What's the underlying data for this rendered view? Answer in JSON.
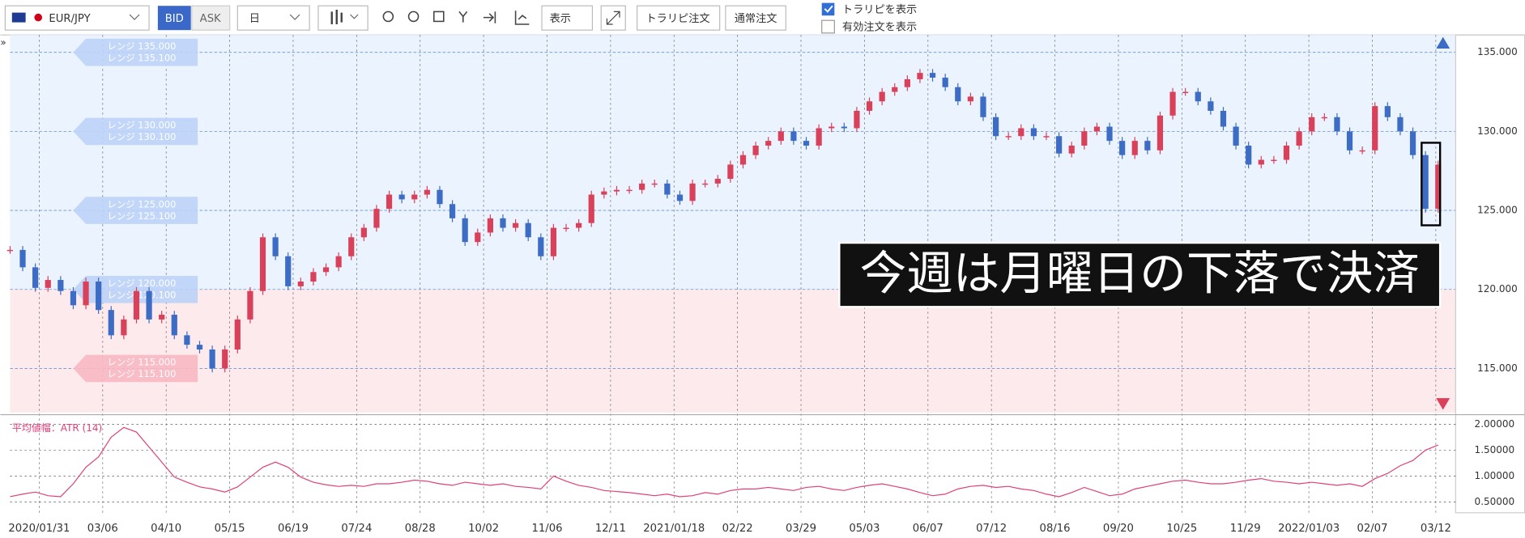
{
  "toolbar": {
    "symbol": "EUR/JPY",
    "bid": "BID",
    "ask": "ASK",
    "period": "日",
    "display": "表示",
    "trarepi_order": "トラリピ注文",
    "normal_order": "通常注文",
    "show_trarepi": "トラリピを表示",
    "show_active": "有効注文を表示"
  },
  "chart_data": [
    {
      "type": "candlestick",
      "up_color": "#d9415b",
      "down_color": "#3d6cc4",
      "band_split": 120,
      "values": [
        122.5,
        121.4,
        120.1,
        120.6,
        119.9,
        119.0,
        120.5,
        118.7,
        117.1,
        118.1,
        119.9,
        118.1,
        118.4,
        117.1,
        116.5,
        116.2,
        115.0,
        116.2,
        118.1,
        119.9,
        123.3,
        122.1,
        120.2,
        120.5,
        121.1,
        121.4,
        122.1,
        123.3,
        123.9,
        125.1,
        126.0,
        125.7,
        126.0,
        126.3,
        125.4,
        124.5,
        123.0,
        123.6,
        124.5,
        123.9,
        124.2,
        123.3,
        122.1,
        123.9,
        123.9,
        124.2,
        126.0,
        126.2,
        126.3,
        126.3,
        126.7,
        126.7,
        126.0,
        125.6,
        126.7,
        126.7,
        127.0,
        127.9,
        128.5,
        129.1,
        129.4,
        130.0,
        129.4,
        129.1,
        130.2,
        130.3,
        130.2,
        131.3,
        131.9,
        132.5,
        132.8,
        133.3,
        133.7,
        133.4,
        132.8,
        131.9,
        132.2,
        130.9,
        129.7,
        129.7,
        130.2,
        129.7,
        129.7,
        128.6,
        129.1,
        130.0,
        130.3,
        129.4,
        128.5,
        129.4,
        128.8,
        131.0,
        132.5,
        132.5,
        131.9,
        131.3,
        130.3,
        129.1,
        127.9,
        128.2,
        128.2,
        129.1,
        130.0,
        130.9,
        130.9,
        130.0,
        128.8,
        128.8,
        131.6,
        130.9,
        130.0,
        128.5,
        125.1,
        127.9
      ],
      "ylim": [
        112.2,
        136.1
      ],
      "yticks": [
        {
          "value": 115,
          "label": "115.000"
        },
        {
          "value": 120,
          "label": "120.000"
        },
        {
          "value": 125,
          "label": "125.000"
        },
        {
          "value": 130,
          "label": "130.000"
        },
        {
          "value": 135,
          "label": "135.000"
        }
      ],
      "x_axis_labels": [
        "2020/01/31",
        "03/06",
        "04/10",
        "05/15",
        "06/19",
        "07/24",
        "08/28",
        "10/02",
        "11/06",
        "12/11",
        "2021/01/18",
        "02/22",
        "03/29",
        "05/03",
        "06/07",
        "07/12",
        "08/16",
        "09/20",
        "10/25",
        "11/29",
        "2022/01/03",
        "02/07",
        "03/12"
      ],
      "ranges": [
        {
          "price": 135,
          "label1": "レンジ 135.000",
          "label2": "レンジ 135.100"
        },
        {
          "price": 130,
          "label1": "レンジ 130.000",
          "label2": "レンジ 130.100"
        },
        {
          "price": 125,
          "label1": "レンジ 125.000",
          "label2": "レンジ 125.100"
        },
        {
          "price": 120,
          "label1": "レンジ 120.000",
          "label2": "レンジ 120.100"
        },
        {
          "price": 115,
          "label1": "レンジ 115.000",
          "label2": "レンジ 115.100"
        }
      ],
      "annotation": "今週は月曜日の下落で決済"
    },
    {
      "type": "line",
      "title": "平均値幅：ATR (14)",
      "color": "#e0407a",
      "values": [
        0.6,
        0.65,
        0.69,
        0.62,
        0.6,
        0.85,
        1.17,
        1.37,
        1.75,
        1.94,
        1.85,
        1.56,
        1.27,
        0.98,
        0.88,
        0.79,
        0.75,
        0.69,
        0.79,
        0.98,
        1.17,
        1.27,
        1.17,
        0.98,
        0.88,
        0.83,
        0.8,
        0.82,
        0.8,
        0.85,
        0.85,
        0.88,
        0.92,
        0.9,
        0.85,
        0.82,
        0.88,
        0.85,
        0.82,
        0.85,
        0.8,
        0.78,
        0.75,
        1.0,
        0.9,
        0.82,
        0.78,
        0.72,
        0.7,
        0.68,
        0.65,
        0.62,
        0.65,
        0.6,
        0.62,
        0.68,
        0.65,
        0.72,
        0.75,
        0.75,
        0.78,
        0.75,
        0.72,
        0.78,
        0.8,
        0.75,
        0.72,
        0.78,
        0.82,
        0.85,
        0.8,
        0.75,
        0.68,
        0.62,
        0.65,
        0.75,
        0.8,
        0.82,
        0.78,
        0.8,
        0.75,
        0.72,
        0.65,
        0.6,
        0.68,
        0.78,
        0.7,
        0.62,
        0.65,
        0.75,
        0.8,
        0.85,
        0.9,
        0.92,
        0.88,
        0.85,
        0.85,
        0.88,
        0.92,
        0.95,
        0.9,
        0.88,
        0.85,
        0.88,
        0.85,
        0.82,
        0.85,
        0.8,
        0.95,
        1.05,
        1.2,
        1.3,
        1.5,
        1.6
      ],
      "ylim": [
        0.29,
        2.13
      ],
      "yticks": [
        {
          "value": 0.5,
          "label": "0.50000"
        },
        {
          "value": 1,
          "label": "1.00000"
        },
        {
          "value": 1.5,
          "label": "1.50000"
        },
        {
          "value": 2,
          "label": "2.00000"
        }
      ]
    }
  ]
}
